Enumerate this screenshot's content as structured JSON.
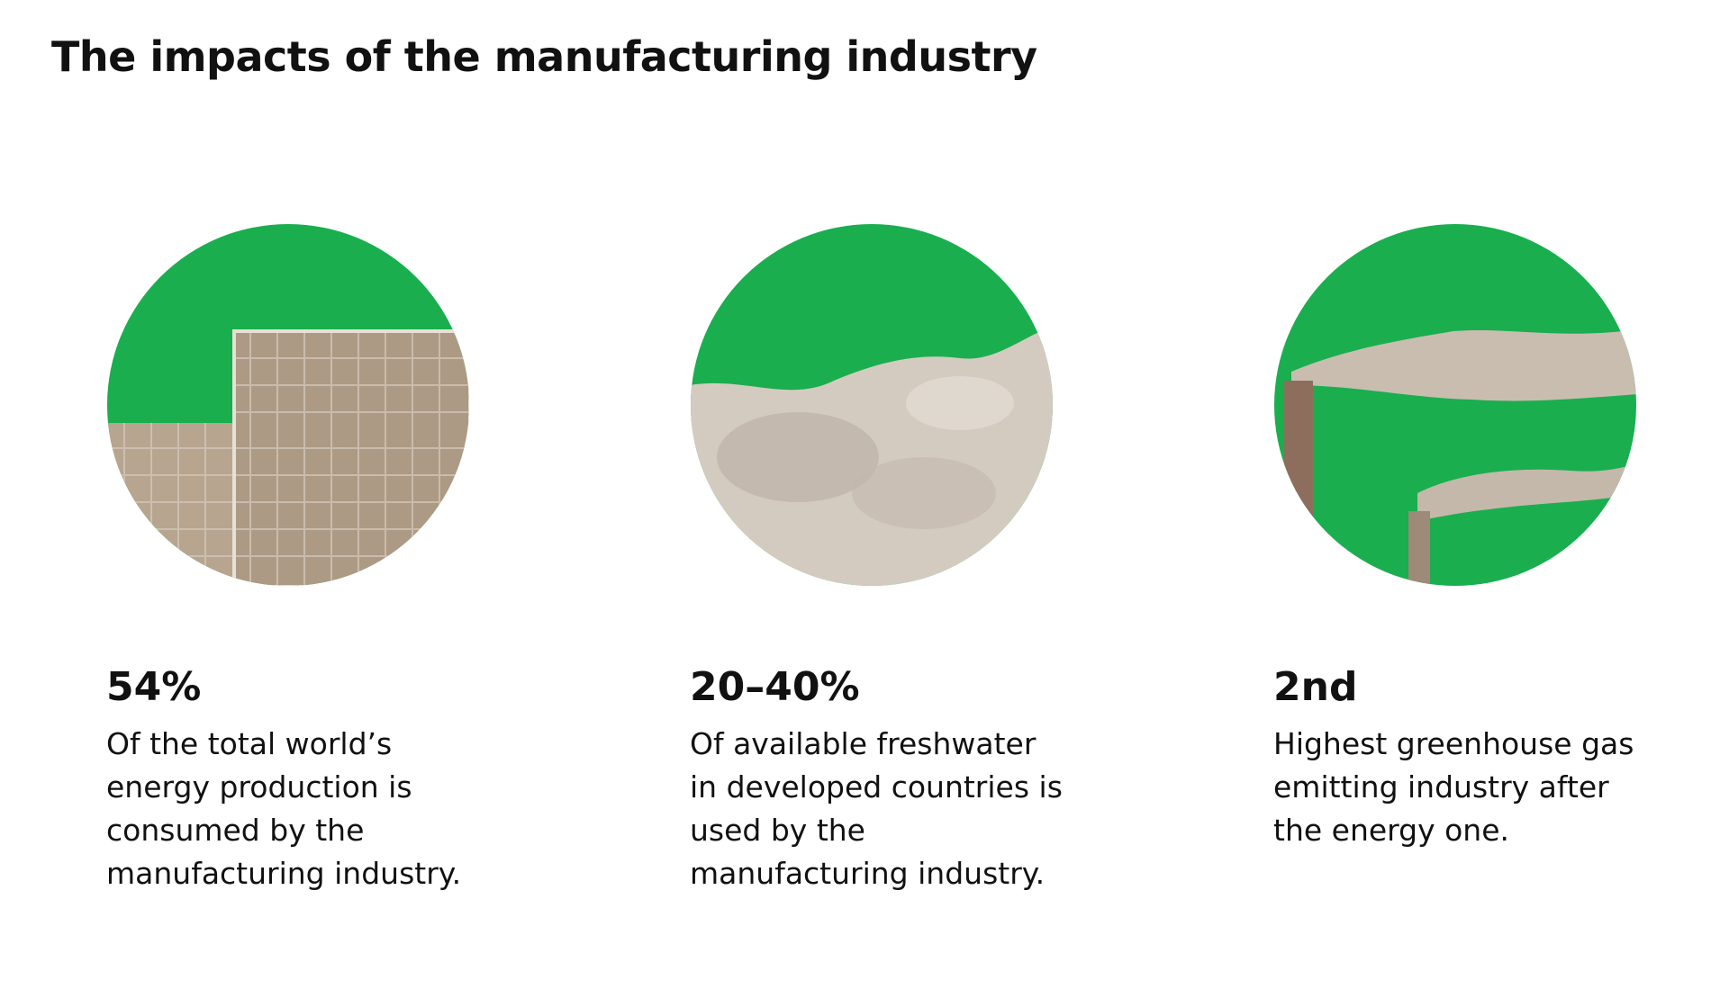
{
  "header": {
    "title": "The impacts of the manufacturing industry"
  },
  "items": [
    {
      "stat": "54%",
      "lines": [
        "Of the total world’s",
        "energy production is",
        "consumed by the",
        "manufacturing industry."
      ]
    },
    {
      "stat": "20–40%",
      "lines": [
        "Of available freshwater",
        "in developed countries is",
        "used by the",
        "manufacturing industry."
      ]
    },
    {
      "stat": "2nd",
      "lines": [
        "Highest greenhouse gas",
        "emitting industry after",
        "the energy one."
      ]
    }
  ]
}
